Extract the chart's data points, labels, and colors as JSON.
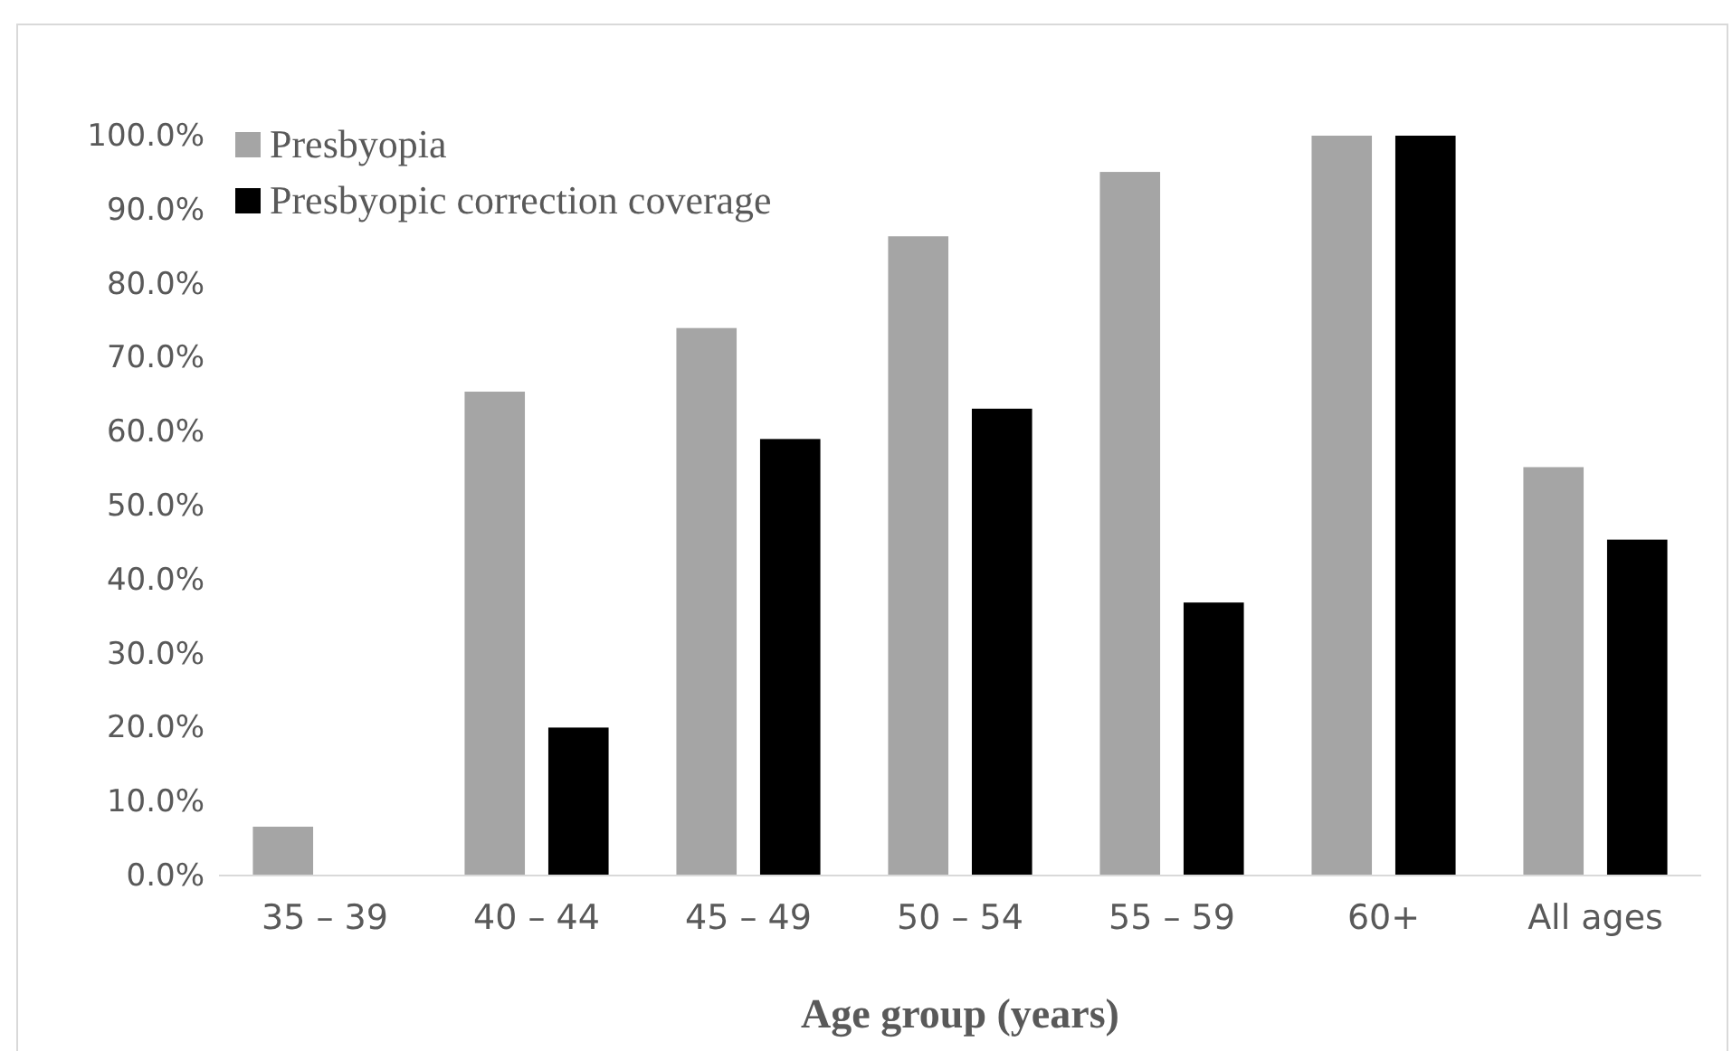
{
  "chart_data": {
    "type": "bar",
    "xlabel": "Age group (years)",
    "categories": [
      "35 – 39",
      "40 – 44",
      "45 – 49",
      "50 – 54",
      "55 – 59",
      "60+",
      "All ages"
    ],
    "series": [
      {
        "name": "Presbyopia",
        "color": "#a5a5a5",
        "values": [
          6.6,
          65.4,
          74.0,
          86.4,
          95.1,
          100,
          55.2
        ]
      },
      {
        "name": "Presbyopic correction coverage",
        "color": "#000000",
        "values": [
          0,
          20.0,
          59.0,
          63.1,
          36.9,
          100,
          45.4
        ]
      }
    ],
    "ylim": [
      0,
      100
    ],
    "yticks": [
      {
        "value": 0,
        "label": "0.0%"
      },
      {
        "value": 10,
        "label": "10.0%"
      },
      {
        "value": 20,
        "label": "20.0%"
      },
      {
        "value": 30,
        "label": "30.0%"
      },
      {
        "value": 40,
        "label": "40.0%"
      },
      {
        "value": 50,
        "label": "50.0%"
      },
      {
        "value": 60,
        "label": "60.0%"
      },
      {
        "value": 70,
        "label": "70.0%"
      },
      {
        "value": 80,
        "label": "80.0%"
      },
      {
        "value": 90,
        "label": "90.0%"
      },
      {
        "value": 100,
        "label": "100.0%"
      }
    ],
    "grid": false,
    "legend": "top left"
  }
}
